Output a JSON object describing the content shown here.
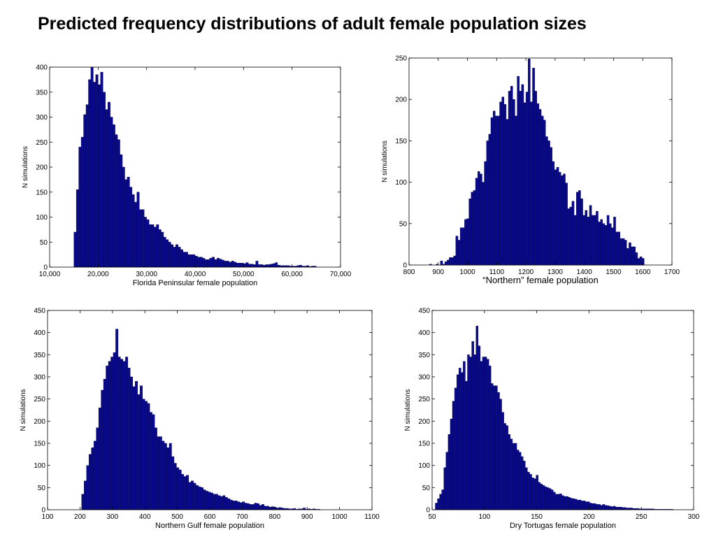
{
  "title": "Predicted frequency distributions of adult female population sizes",
  "colors": {
    "bar_fill": "#0a0a8c",
    "bar_edge": "#000040",
    "axis": "#000000"
  },
  "chart_data": [
    {
      "type": "bar",
      "xlabel": "Florida Peninsular female population",
      "ylabel": "N simulations",
      "xlim": [
        10000,
        70000
      ],
      "ylim": [
        0,
        400
      ],
      "xticks": [
        10000,
        20000,
        30000,
        40000,
        50000,
        60000,
        70000
      ],
      "xtick_labels": [
        "10,000",
        "20,000",
        "30,000",
        "40,000",
        "50,000",
        "60,000",
        "70,000"
      ],
      "yticks": [
        0,
        50,
        100,
        150,
        200,
        250,
        300,
        350,
        400
      ],
      "ytick_labels": [
        "0",
        "50",
        "100",
        "150",
        "200",
        "250",
        "300",
        "350",
        "400"
      ],
      "bin_start": 15000,
      "bin_width": 500,
      "values": [
        70,
        155,
        240,
        260,
        305,
        325,
        375,
        400,
        370,
        385,
        365,
        390,
        350,
        315,
        330,
        300,
        285,
        265,
        255,
        225,
        200,
        175,
        180,
        160,
        145,
        130,
        150,
        115,
        115,
        100,
        95,
        85,
        85,
        80,
        85,
        75,
        70,
        60,
        55,
        50,
        45,
        40,
        45,
        40,
        35,
        30,
        30,
        25,
        25,
        25,
        22,
        20,
        20,
        18,
        15,
        15,
        18,
        20,
        15,
        18,
        16,
        14,
        12,
        12,
        10,
        12,
        10,
        8,
        8,
        8,
        7,
        9,
        6,
        6,
        5,
        12,
        5,
        5,
        4,
        5,
        5,
        6,
        7,
        9,
        4,
        3,
        3,
        3,
        3,
        2,
        2,
        2,
        3,
        4,
        2,
        2,
        3,
        1,
        2,
        2
      ]
    },
    {
      "type": "bar",
      "xlabel": "“Northern” female population",
      "ylabel": "N simulations",
      "xlim": [
        800,
        1700
      ],
      "ylim": [
        0,
        250
      ],
      "xticks": [
        800,
        900,
        1000,
        1100,
        1200,
        1300,
        1400,
        1500,
        1600,
        1700
      ],
      "xtick_labels": [
        "800",
        "900",
        "1000",
        "1100",
        "1200",
        "1300",
        "1400",
        "1500",
        "1600",
        "1700"
      ],
      "yticks": [
        0,
        50,
        100,
        150,
        200,
        250
      ],
      "ytick_labels": [
        "0",
        "50",
        "100",
        "150",
        "200",
        "250"
      ],
      "bin_start": 870,
      "bin_width": 7.5,
      "values": [
        1,
        0,
        0,
        1,
        0,
        5,
        1,
        4,
        6,
        9,
        9,
        11,
        35,
        30,
        45,
        45,
        55,
        56,
        80,
        88,
        90,
        105,
        113,
        110,
        100,
        125,
        150,
        158,
        178,
        186,
        180,
        180,
        197,
        203,
        194,
        176,
        210,
        216,
        200,
        180,
        228,
        210,
        218,
        196,
        209,
        249,
        197,
        238,
        210,
        195,
        188,
        180,
        175,
        155,
        150,
        142,
        125,
        115,
        118,
        112,
        108,
        110,
        99,
        68,
        70,
        77,
        60,
        88,
        90,
        80,
        60,
        66,
        58,
        72,
        60,
        60,
        65,
        52,
        55,
        50,
        48,
        60,
        50,
        45,
        58,
        40,
        40,
        32,
        32,
        30,
        20,
        27,
        22,
        22,
        15,
        8,
        10,
        8
      ]
    },
    {
      "type": "bar",
      "xlabel": "Northern Gulf female population",
      "ylabel": "N simulations",
      "xlim": [
        100,
        1100
      ],
      "ylim": [
        0,
        450
      ],
      "xticks": [
        100,
        200,
        300,
        400,
        500,
        600,
        700,
        800,
        900,
        1000,
        1100
      ],
      "xtick_labels": [
        "100",
        "200",
        "300",
        "400",
        "500",
        "600",
        "700",
        "800",
        "900",
        "1000",
        "1100"
      ],
      "yticks": [
        0,
        50,
        100,
        150,
        200,
        250,
        300,
        350,
        400,
        450
      ],
      "ytick_labels": [
        "0",
        "50",
        "100",
        "150",
        "200",
        "250",
        "300",
        "350",
        "400",
        "450"
      ],
      "bin_start": 205,
      "bin_width": 7.5,
      "values": [
        35,
        65,
        100,
        125,
        140,
        155,
        185,
        230,
        270,
        295,
        325,
        335,
        345,
        355,
        408,
        345,
        340,
        335,
        345,
        320,
        300,
        278,
        290,
        260,
        280,
        250,
        245,
        240,
        220,
        215,
        185,
        165,
        165,
        155,
        150,
        140,
        150,
        120,
        105,
        95,
        90,
        80,
        75,
        78,
        62,
        65,
        60,
        55,
        52,
        50,
        45,
        42,
        40,
        38,
        35,
        35,
        32,
        30,
        32,
        28,
        25,
        22,
        20,
        20,
        18,
        16,
        18,
        15,
        14,
        12,
        12,
        15,
        14,
        10,
        12,
        8,
        8,
        6,
        7,
        6,
        4,
        5,
        4,
        3,
        3,
        2,
        2,
        3,
        1,
        2,
        2,
        4,
        1,
        2,
        1,
        2,
        1,
        1
      ]
    },
    {
      "type": "bar",
      "xlabel": "Dry Tortugas female population",
      "ylabel": "N simulations",
      "xlim": [
        50,
        300
      ],
      "ylim": [
        0,
        450
      ],
      "xticks": [
        50,
        100,
        150,
        200,
        250,
        300
      ],
      "xtick_labels": [
        "50",
        "100",
        "150",
        "200",
        "250",
        "300"
      ],
      "yticks": [
        0,
        50,
        100,
        150,
        200,
        250,
        300,
        350,
        400,
        450
      ],
      "ytick_labels": [
        "0",
        "50",
        "100",
        "150",
        "200",
        "250",
        "300",
        "350",
        "400",
        "450"
      ],
      "bin_start": 53,
      "bin_width": 2.05,
      "values": [
        15,
        25,
        35,
        45,
        95,
        130,
        170,
        205,
        245,
        275,
        305,
        320,
        310,
        335,
        290,
        350,
        345,
        380,
        350,
        415,
        370,
        335,
        345,
        345,
        340,
        325,
        285,
        280,
        280,
        265,
        250,
        220,
        195,
        190,
        170,
        160,
        150,
        150,
        135,
        130,
        120,
        110,
        95,
        85,
        80,
        72,
        70,
        78,
        62,
        58,
        55,
        52,
        50,
        48,
        45,
        40,
        35,
        35,
        36,
        32,
        30,
        30,
        28,
        26,
        25,
        24,
        22,
        22,
        20,
        20,
        18,
        18,
        15,
        14,
        14,
        12,
        12,
        10,
        12,
        10,
        9,
        8,
        7,
        8,
        6,
        6,
        6,
        5,
        5,
        4,
        4,
        4,
        3,
        3,
        3,
        2,
        2,
        2,
        2,
        2,
        2,
        2,
        1,
        1,
        1,
        1,
        1,
        1,
        1,
        1,
        1
      ]
    }
  ]
}
